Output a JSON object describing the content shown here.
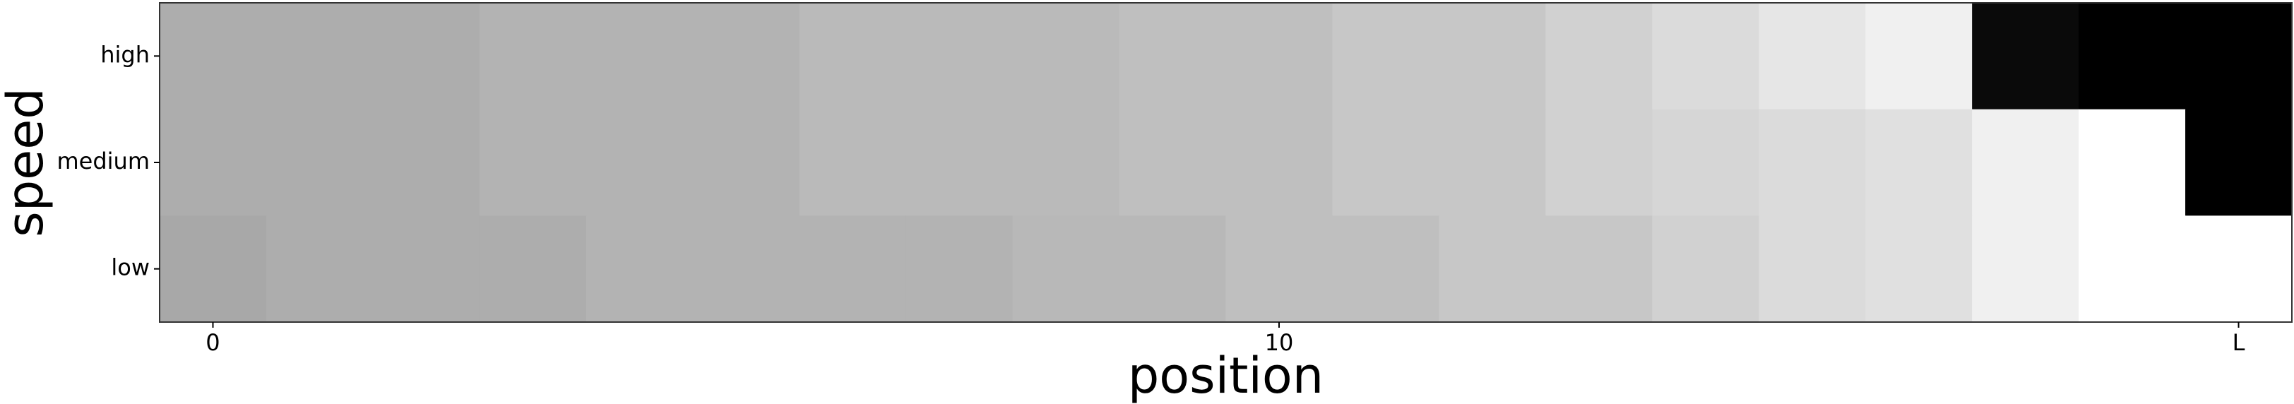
{
  "chart_data": {
    "type": "heatmap",
    "title": "",
    "xlabel": "position",
    "ylabel": "speed",
    "x_ticks": [
      {
        "pos": 0,
        "label": "0"
      },
      {
        "pos": 10,
        "label": "10"
      },
      {
        "pos": 19,
        "label": "L"
      }
    ],
    "y_categories": [
      "high",
      "medium",
      "low"
    ],
    "x_cells": 20,
    "colormap": "gray (lower values lighter, higher values darker)",
    "values": [
      [
        0.68,
        0.68,
        0.68,
        0.7,
        0.7,
        0.7,
        0.73,
        0.73,
        0.73,
        0.75,
        0.75,
        0.78,
        0.78,
        0.82,
        0.86,
        0.9,
        0.94,
        0.04,
        0.0,
        0.0
      ],
      [
        0.68,
        0.68,
        0.68,
        0.7,
        0.7,
        0.7,
        0.73,
        0.73,
        0.73,
        0.75,
        0.75,
        0.78,
        0.78,
        0.82,
        0.84,
        0.86,
        0.88,
        0.94,
        1.0,
        0.0
      ],
      [
        0.66,
        0.68,
        0.68,
        0.68,
        0.7,
        0.7,
        0.7,
        0.7,
        0.72,
        0.72,
        0.75,
        0.75,
        0.78,
        0.78,
        0.82,
        0.86,
        0.88,
        0.94,
        1.0,
        1.0
      ]
    ],
    "grid": false,
    "legend": "none"
  }
}
